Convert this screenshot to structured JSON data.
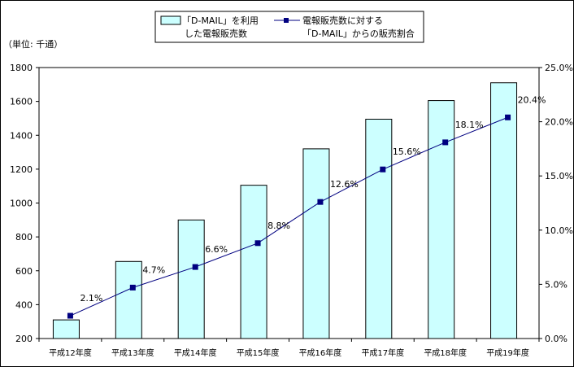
{
  "chart_data": {
    "type": "bar+line",
    "unit_label": "（単位: 千通）",
    "categories": [
      "平成12年度",
      "平成13年度",
      "平成14年度",
      "平成15年度",
      "平成16年度",
      "平成17年度",
      "平成18年度",
      "平成19年度"
    ],
    "series": [
      {
        "name": "「D-MAIL」を利用した電報販売数",
        "legend_lines": [
          "「D-MAIL」を利用",
          "した電報販売数"
        ],
        "type": "bar",
        "axis": "left",
        "values": [
          310,
          655,
          900,
          1105,
          1320,
          1495,
          1605,
          1710
        ]
      },
      {
        "name": "電報販売数に対する「D-MAIL」からの販売割合",
        "legend_lines": [
          "電報販売数に対する",
          "「D-MAIL」からの販売割合"
        ],
        "type": "line",
        "axis": "right",
        "values": [
          2.1,
          4.7,
          6.6,
          8.8,
          12.6,
          15.6,
          18.1,
          20.4
        ],
        "labels": [
          "2.1%",
          "4.7%",
          "6.6%",
          "8.8%",
          "12.6%",
          "15.6%",
          "18.1%",
          "20.4%"
        ]
      }
    ],
    "y_left": {
      "min": 200,
      "max": 1800,
      "ticks": [
        "200",
        "400",
        "600",
        "800",
        "1000",
        "1200",
        "1400",
        "1600",
        "1800"
      ]
    },
    "y_right": {
      "min": 0,
      "max": 25,
      "ticks": [
        "0.0%",
        "5.0%",
        "10.0%",
        "15.0%",
        "20.0%",
        "25.0%"
      ]
    },
    "grid": false,
    "legend_position": "top-center",
    "colors": {
      "bar_fill": "#ccffff",
      "bar_stroke": "#000000",
      "line": "#000080",
      "marker": "#000080"
    }
  }
}
